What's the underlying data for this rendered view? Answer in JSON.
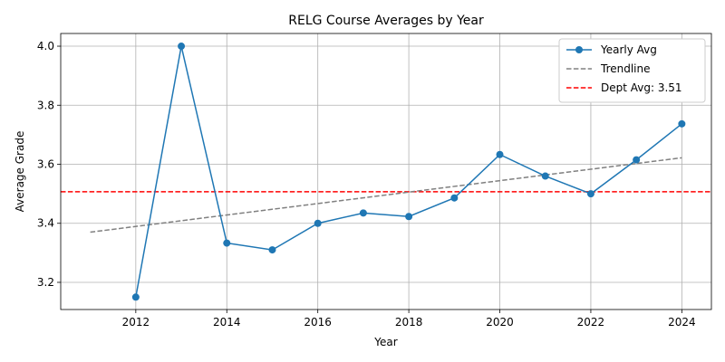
{
  "chart_data": {
    "type": "line",
    "title": "RELG Course Averages by Year",
    "xlabel": "Year",
    "ylabel": "Average Grade",
    "xlim": [
      2010.35,
      2024.65
    ],
    "ylim": [
      3.108,
      4.043
    ],
    "xticks": [
      2012,
      2014,
      2016,
      2018,
      2020,
      2022,
      2024
    ],
    "yticks": [
      3.2,
      3.4,
      3.6,
      3.8,
      4.0
    ],
    "ytick_labels": [
      "3.2",
      "3.4",
      "3.6",
      "3.8",
      "4.0"
    ],
    "grid": true,
    "legend_position": "top-right",
    "series": [
      {
        "name": "Yearly Avg",
        "style": "line-marker",
        "color": "#1f77b4",
        "x": [
          2012,
          2013,
          2014,
          2015,
          2016,
          2017,
          2018,
          2019,
          2020,
          2021,
          2022,
          2023,
          2024
        ],
        "y": [
          3.15,
          4.0,
          3.333,
          3.31,
          3.4,
          3.435,
          3.423,
          3.486,
          3.633,
          3.56,
          3.5,
          3.615,
          3.737
        ]
      },
      {
        "name": "Trendline",
        "style": "dashed",
        "color": "#808080",
        "x": [
          2011,
          2024
        ],
        "y": [
          3.37,
          3.622
        ]
      }
    ],
    "reference_line": {
      "name": "Dept Avg: 3.51",
      "value": 3.507,
      "color": "#ff0000",
      "style": "dashed"
    }
  }
}
